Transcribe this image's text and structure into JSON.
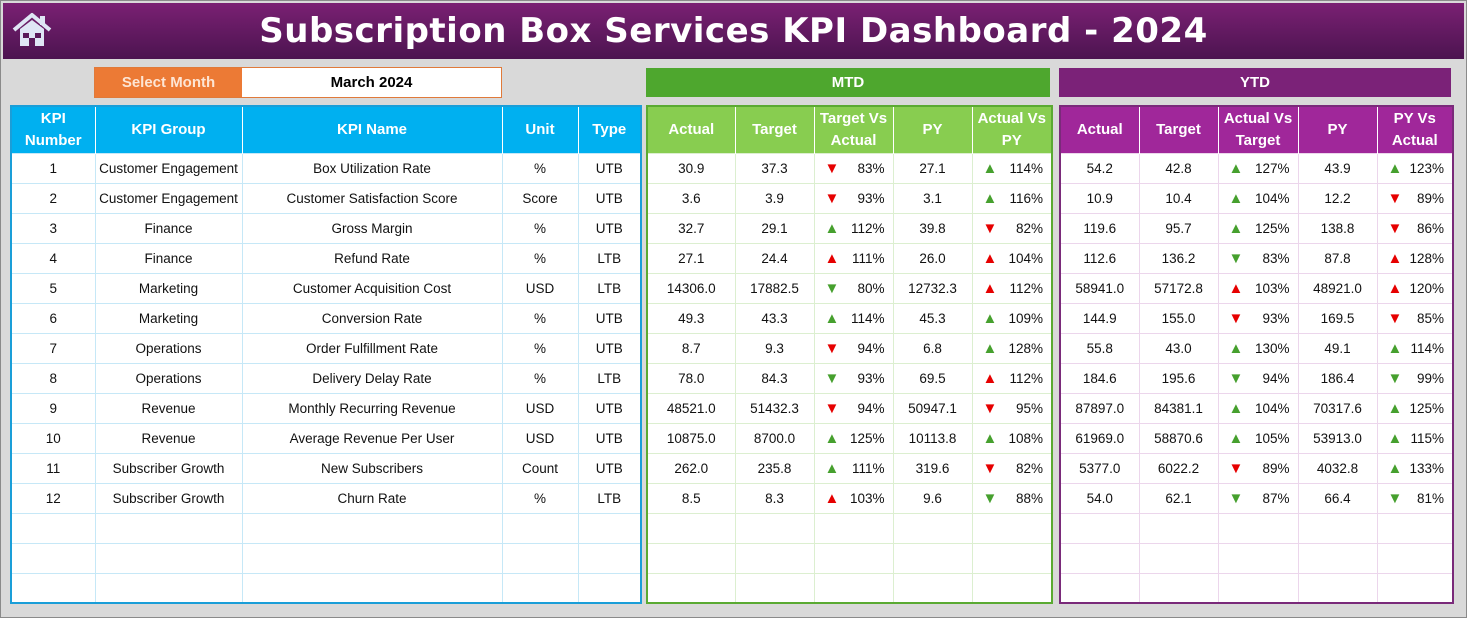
{
  "header": {
    "title": "Subscription Box Services KPI Dashboard - 2024",
    "home_icon": "home-icon"
  },
  "select": {
    "label": "Select Month",
    "value": "March 2024"
  },
  "bands": {
    "mtd": "MTD",
    "ytd": "YTD",
    "mtd_color": "#4ea72e",
    "ytd_color": "#7b2278"
  },
  "kpi_headers": [
    "KPI Number",
    "KPI Group",
    "KPI Name",
    "Unit",
    "Type"
  ],
  "mtd_headers": [
    "Actual",
    "Target",
    "Target Vs Actual",
    "PY",
    "Actual Vs PY"
  ],
  "ytd_headers": [
    "Actual",
    "Target",
    "Actual Vs Target",
    "PY",
    "PY Vs Actual"
  ],
  "colors": {
    "green": "#46a02e",
    "red": "#e60000",
    "blue_header": "#00b0f0",
    "green_header": "#88cd50",
    "purple_header": "#a0279a"
  },
  "rows": [
    {
      "num": "1",
      "group": "Customer Engagement",
      "name": "Box Utilization Rate",
      "unit": "%",
      "type": "UTB",
      "mtd": {
        "actual": "30.9",
        "target": "37.3",
        "tva": {
          "dir": "down",
          "color": "red",
          "pct": "83%"
        },
        "py": "27.1",
        "avp": {
          "dir": "up",
          "color": "green",
          "pct": "114%"
        }
      },
      "ytd": {
        "actual": "54.2",
        "target": "42.8",
        "avt": {
          "dir": "up",
          "color": "green",
          "pct": "127%"
        },
        "py": "43.9",
        "pva": {
          "dir": "up",
          "color": "green",
          "pct": "123%"
        }
      }
    },
    {
      "num": "2",
      "group": "Customer Engagement",
      "name": "Customer Satisfaction Score",
      "unit": "Score",
      "type": "UTB",
      "mtd": {
        "actual": "3.6",
        "target": "3.9",
        "tva": {
          "dir": "down",
          "color": "red",
          "pct": "93%"
        },
        "py": "3.1",
        "avp": {
          "dir": "up",
          "color": "green",
          "pct": "116%"
        }
      },
      "ytd": {
        "actual": "10.9",
        "target": "10.4",
        "avt": {
          "dir": "up",
          "color": "green",
          "pct": "104%"
        },
        "py": "12.2",
        "pva": {
          "dir": "down",
          "color": "red",
          "pct": "89%"
        }
      }
    },
    {
      "num": "3",
      "group": "Finance",
      "name": "Gross Margin",
      "unit": "%",
      "type": "UTB",
      "mtd": {
        "actual": "32.7",
        "target": "29.1",
        "tva": {
          "dir": "up",
          "color": "green",
          "pct": "112%"
        },
        "py": "39.8",
        "avp": {
          "dir": "down",
          "color": "red",
          "pct": "82%"
        }
      },
      "ytd": {
        "actual": "119.6",
        "target": "95.7",
        "avt": {
          "dir": "up",
          "color": "green",
          "pct": "125%"
        },
        "py": "138.8",
        "pva": {
          "dir": "down",
          "color": "red",
          "pct": "86%"
        }
      }
    },
    {
      "num": "4",
      "group": "Finance",
      "name": "Refund Rate",
      "unit": "%",
      "type": "LTB",
      "mtd": {
        "actual": "27.1",
        "target": "24.4",
        "tva": {
          "dir": "up",
          "color": "red",
          "pct": "111%"
        },
        "py": "26.0",
        "avp": {
          "dir": "up",
          "color": "red",
          "pct": "104%"
        }
      },
      "ytd": {
        "actual": "112.6",
        "target": "136.2",
        "avt": {
          "dir": "down",
          "color": "green",
          "pct": "83%"
        },
        "py": "87.8",
        "pva": {
          "dir": "up",
          "color": "red",
          "pct": "128%"
        }
      }
    },
    {
      "num": "5",
      "group": "Marketing",
      "name": "Customer Acquisition Cost",
      "unit": "USD",
      "type": "LTB",
      "mtd": {
        "actual": "14306.0",
        "target": "17882.5",
        "tva": {
          "dir": "down",
          "color": "green",
          "pct": "80%"
        },
        "py": "12732.3",
        "avp": {
          "dir": "up",
          "color": "red",
          "pct": "112%"
        }
      },
      "ytd": {
        "actual": "58941.0",
        "target": "57172.8",
        "avt": {
          "dir": "up",
          "color": "red",
          "pct": "103%"
        },
        "py": "48921.0",
        "pva": {
          "dir": "up",
          "color": "red",
          "pct": "120%"
        }
      }
    },
    {
      "num": "6",
      "group": "Marketing",
      "name": "Conversion Rate",
      "unit": "%",
      "type": "UTB",
      "mtd": {
        "actual": "49.3",
        "target": "43.3",
        "tva": {
          "dir": "up",
          "color": "green",
          "pct": "114%"
        },
        "py": "45.3",
        "avp": {
          "dir": "up",
          "color": "green",
          "pct": "109%"
        }
      },
      "ytd": {
        "actual": "144.9",
        "target": "155.0",
        "avt": {
          "dir": "down",
          "color": "red",
          "pct": "93%"
        },
        "py": "169.5",
        "pva": {
          "dir": "down",
          "color": "red",
          "pct": "85%"
        }
      }
    },
    {
      "num": "7",
      "group": "Operations",
      "name": "Order Fulfillment Rate",
      "unit": "%",
      "type": "UTB",
      "mtd": {
        "actual": "8.7",
        "target": "9.3",
        "tva": {
          "dir": "down",
          "color": "red",
          "pct": "94%"
        },
        "py": "6.8",
        "avp": {
          "dir": "up",
          "color": "green",
          "pct": "128%"
        }
      },
      "ytd": {
        "actual": "55.8",
        "target": "43.0",
        "avt": {
          "dir": "up",
          "color": "green",
          "pct": "130%"
        },
        "py": "49.1",
        "pva": {
          "dir": "up",
          "color": "green",
          "pct": "114%"
        }
      }
    },
    {
      "num": "8",
      "group": "Operations",
      "name": "Delivery Delay Rate",
      "unit": "%",
      "type": "LTB",
      "mtd": {
        "actual": "78.0",
        "target": "84.3",
        "tva": {
          "dir": "down",
          "color": "green",
          "pct": "93%"
        },
        "py": "69.5",
        "avp": {
          "dir": "up",
          "color": "red",
          "pct": "112%"
        }
      },
      "ytd": {
        "actual": "184.6",
        "target": "195.6",
        "avt": {
          "dir": "down",
          "color": "green",
          "pct": "94%"
        },
        "py": "186.4",
        "pva": {
          "dir": "down",
          "color": "green",
          "pct": "99%"
        }
      }
    },
    {
      "num": "9",
      "group": "Revenue",
      "name": "Monthly Recurring Revenue",
      "unit": "USD",
      "type": "UTB",
      "mtd": {
        "actual": "48521.0",
        "target": "51432.3",
        "tva": {
          "dir": "down",
          "color": "red",
          "pct": "94%"
        },
        "py": "50947.1",
        "avp": {
          "dir": "down",
          "color": "red",
          "pct": "95%"
        }
      },
      "ytd": {
        "actual": "87897.0",
        "target": "84381.1",
        "avt": {
          "dir": "up",
          "color": "green",
          "pct": "104%"
        },
        "py": "70317.6",
        "pva": {
          "dir": "up",
          "color": "green",
          "pct": "125%"
        }
      }
    },
    {
      "num": "10",
      "group": "Revenue",
      "name": "Average Revenue Per User",
      "unit": "USD",
      "type": "UTB",
      "mtd": {
        "actual": "10875.0",
        "target": "8700.0",
        "tva": {
          "dir": "up",
          "color": "green",
          "pct": "125%"
        },
        "py": "10113.8",
        "avp": {
          "dir": "up",
          "color": "green",
          "pct": "108%"
        }
      },
      "ytd": {
        "actual": "61969.0",
        "target": "58870.6",
        "avt": {
          "dir": "up",
          "color": "green",
          "pct": "105%"
        },
        "py": "53913.0",
        "pva": {
          "dir": "up",
          "color": "green",
          "pct": "115%"
        }
      }
    },
    {
      "num": "11",
      "group": "Subscriber Growth",
      "name": "New Subscribers",
      "unit": "Count",
      "type": "UTB",
      "mtd": {
        "actual": "262.0",
        "target": "235.8",
        "tva": {
          "dir": "up",
          "color": "green",
          "pct": "111%"
        },
        "py": "319.6",
        "avp": {
          "dir": "down",
          "color": "red",
          "pct": "82%"
        }
      },
      "ytd": {
        "actual": "5377.0",
        "target": "6022.2",
        "avt": {
          "dir": "down",
          "color": "red",
          "pct": "89%"
        },
        "py": "4032.8",
        "pva": {
          "dir": "up",
          "color": "green",
          "pct": "133%"
        }
      }
    },
    {
      "num": "12",
      "group": "Subscriber Growth",
      "name": "Churn Rate",
      "unit": "%",
      "type": "LTB",
      "mtd": {
        "actual": "8.5",
        "target": "8.3",
        "tva": {
          "dir": "up",
          "color": "red",
          "pct": "103%"
        },
        "py": "9.6",
        "avp": {
          "dir": "down",
          "color": "green",
          "pct": "88%"
        }
      },
      "ytd": {
        "actual": "54.0",
        "target": "62.1",
        "avt": {
          "dir": "down",
          "color": "green",
          "pct": "87%"
        },
        "py": "66.4",
        "pva": {
          "dir": "down",
          "color": "green",
          "pct": "81%"
        }
      }
    }
  ]
}
